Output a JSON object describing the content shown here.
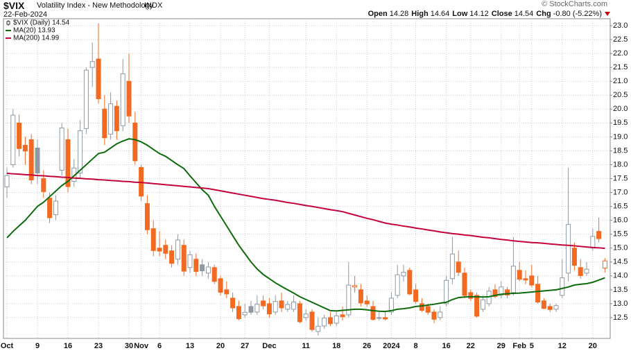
{
  "header": {
    "symbol": "$VIX",
    "name": "Volatility Index - New Methodology",
    "exchange": "INDX",
    "date": "22-Feb-2024",
    "quote": [
      {
        "label": "Open",
        "value": "14.28"
      },
      {
        "label": "High",
        "value": "14.64"
      },
      {
        "label": "Low",
        "value": "14.12"
      },
      {
        "label": "Close",
        "value": "14.54"
      },
      {
        "label": "Chg",
        "value": "-0.80 (-5.22%)"
      }
    ],
    "watermark": "© StockCharts.com"
  },
  "chart_data": {
    "type": "candlestick",
    "grid": true,
    "legend": "top-left",
    "categories": [
      "Oct",
      null,
      null,
      null,
      null,
      "9",
      null,
      null,
      null,
      null,
      "16",
      null,
      null,
      null,
      null,
      "23",
      null,
      null,
      null,
      null,
      "30",
      null,
      "Nov",
      null,
      null,
      "6",
      null,
      null,
      null,
      null,
      "13",
      null,
      null,
      null,
      null,
      "20",
      null,
      null,
      null,
      "27",
      null,
      null,
      null,
      "Dec",
      null,
      null,
      null,
      null,
      null,
      "11",
      null,
      null,
      null,
      null,
      "18",
      null,
      null,
      null,
      null,
      "26",
      null,
      null,
      null,
      "2024",
      null,
      null,
      null,
      "8",
      null,
      null,
      null,
      null,
      "16",
      null,
      null,
      null,
      "22",
      null,
      null,
      null,
      null,
      "29",
      null,
      null,
      "Feb",
      null,
      "5",
      null,
      null,
      null,
      null,
      "12",
      null,
      null,
      null,
      null,
      "20",
      null,
      null
    ],
    "ylim": [
      11.75,
      23.25
    ],
    "yticks": [
      12.5,
      {
        "value": 13,
        "label": "13.0"
      },
      13.5,
      {
        "value": 14,
        "label": "14.0"
      },
      14.5,
      {
        "value": 15,
        "label": "15.0"
      },
      15.5,
      {
        "value": 16,
        "label": "16.0"
      },
      16.5,
      {
        "value": 17,
        "label": "17.0"
      },
      17.5,
      {
        "value": 18,
        "label": "18.0"
      },
      18.5,
      {
        "value": 19,
        "label": "19.0"
      },
      19.5,
      {
        "value": 20,
        "label": "20.0"
      },
      20.5,
      {
        "value": 21,
        "label": "21.0"
      },
      21.5,
      {
        "value": 22,
        "label": "22.0"
      },
      22.5,
      {
        "value": 23,
        "label": "23.0"
      }
    ],
    "series": [
      {
        "name": "$VIX (Daily) 14.54",
        "up_color": "#8e99a3",
        "down_color": "#f26a21",
        "open": [
          17.2,
          18.0,
          19.5,
          18.7,
          18.9,
          18.6,
          17.5,
          16.8,
          16.2,
          17.8,
          18.9,
          17.4,
          17.7,
          19.3,
          21.5,
          21.8,
          20.0,
          19.1,
          20.1,
          19.4,
          21.0,
          19.5,
          17.9,
          16.6,
          15.7,
          15.0,
          15.1,
          14.9,
          14.6,
          15.1,
          14.3,
          14.6,
          14.4,
          14.1,
          14.3,
          13.9,
          13.5,
          13.2,
          12.9,
          12.6,
          12.9,
          12.7,
          13.1,
          13.0,
          12.7,
          13.1,
          12.8,
          12.8,
          13.0,
          12.5,
          12.7,
          12.0,
          12.2,
          12.5,
          12.3,
          12.6,
          12.6,
          13.6,
          13.5,
          13.1,
          12.9,
          12.5,
          12.5,
          12.7,
          13.3,
          14.0,
          14.2,
          13.5,
          13.0,
          12.9,
          12.7,
          12.5,
          13.0,
          13.9,
          14.5,
          14.1,
          13.4,
          13.3,
          12.8,
          13.0,
          13.5,
          13.3,
          13.5,
          13.4,
          14.2,
          13.9,
          14.0,
          13.7,
          13.1,
          12.9,
          12.8,
          13.3,
          14.1,
          15.0,
          14.3,
          14.1,
          15.0,
          15.6,
          14.28
        ],
        "high": [
          17.9,
          20.0,
          19.8,
          19.0,
          19.1,
          18.9,
          17.8,
          17.0,
          16.9,
          19.5,
          19.3,
          18.2,
          19.6,
          21.5,
          22.4,
          23.08,
          20.5,
          20.6,
          20.3,
          21.8,
          22.0,
          19.9,
          18.0,
          16.9,
          16.0,
          15.6,
          15.3,
          15.1,
          15.5,
          15.3,
          14.9,
          14.8,
          14.6,
          14.5,
          14.4,
          14.0,
          13.8,
          13.4,
          13.1,
          13.0,
          13.1,
          13.3,
          13.3,
          13.2,
          13.3,
          13.4,
          13.1,
          13.3,
          13.1,
          12.8,
          12.8,
          12.5,
          12.6,
          12.7,
          12.7,
          12.9,
          14.5,
          14.0,
          13.7,
          13.3,
          13.1,
          12.7,
          12.7,
          13.4,
          14.4,
          14.4,
          14.3,
          13.7,
          13.2,
          13.0,
          12.8,
          12.9,
          14.0,
          15.4,
          14.9,
          14.3,
          13.5,
          13.4,
          13.3,
          13.6,
          13.7,
          13.8,
          13.6,
          15.4,
          14.5,
          14.2,
          14.4,
          14.0,
          13.2,
          13.0,
          13.0,
          14.6,
          17.9,
          15.2,
          14.6,
          14.5,
          15.7,
          16.1,
          14.64
        ],
        "low": [
          16.8,
          17.9,
          18.3,
          18.0,
          17.3,
          17.3,
          16.8,
          15.9,
          16.0,
          17.6,
          17.0,
          17.2,
          17.5,
          19.1,
          20.8,
          20.2,
          18.7,
          18.9,
          18.9,
          19.2,
          19.5,
          18.0,
          16.7,
          15.5,
          14.7,
          14.7,
          14.6,
          14.3,
          14.4,
          14.0,
          14.1,
          14.0,
          14.0,
          13.9,
          13.7,
          13.3,
          13.2,
          12.7,
          12.4,
          12.5,
          12.6,
          12.6,
          12.8,
          12.5,
          12.6,
          12.7,
          12.7,
          12.7,
          12.3,
          12.4,
          12.0,
          11.85,
          12.1,
          12.2,
          12.2,
          12.4,
          12.5,
          13.4,
          12.9,
          12.9,
          12.4,
          12.4,
          12.4,
          12.6,
          13.2,
          13.8,
          13.3,
          13.0,
          12.7,
          12.6,
          12.3,
          12.4,
          12.9,
          13.7,
          14.0,
          13.2,
          13.1,
          12.5,
          12.7,
          12.9,
          13.2,
          13.2,
          13.2,
          13.3,
          13.8,
          13.7,
          13.6,
          13.0,
          12.8,
          12.7,
          12.7,
          13.2,
          13.8,
          14.2,
          13.9,
          14.0,
          14.9,
          15.2,
          14.12
        ],
        "close": [
          17.61,
          19.78,
          18.58,
          18.49,
          17.45,
          17.7,
          17.03,
          16.09,
          16.69,
          19.32,
          17.21,
          17.88,
          19.22,
          21.4,
          21.71,
          20.37,
          18.97,
          20.19,
          19.22,
          21.27,
          19.75,
          18.14,
          16.87,
          15.66,
          14.91,
          14.89,
          14.81,
          14.45,
          15.29,
          14.17,
          14.76,
          14.16,
          14.18,
          14.32,
          13.8,
          13.41,
          13.35,
          12.85,
          12.46,
          12.69,
          12.69,
          12.98,
          12.92,
          12.63,
          13.08,
          12.85,
          12.97,
          13.06,
          12.35,
          12.63,
          12.07,
          12.19,
          12.48,
          12.28,
          12.56,
          12.53,
          13.67,
          13.65,
          13.03,
          12.99,
          12.43,
          12.47,
          12.45,
          13.2,
          14.04,
          14.13,
          13.35,
          13.08,
          12.76,
          12.69,
          12.44,
          12.7,
          13.84,
          14.79,
          14.13,
          13.3,
          13.19,
          12.55,
          13.14,
          13.45,
          13.26,
          13.6,
          13.31,
          14.35,
          13.88,
          13.85,
          13.67,
          13.06,
          12.83,
          12.79,
          12.93,
          13.93,
          15.85,
          14.38,
          14.01,
          14.24,
          15.42,
          15.34,
          14.54
        ]
      },
      {
        "name": "MA(20) 13.93",
        "color": "#0b6b0b",
        "values": [
          15.37,
          15.6,
          15.8,
          16.0,
          16.25,
          16.5,
          16.65,
          16.85,
          17.05,
          17.25,
          17.4,
          17.6,
          17.8,
          18.0,
          18.2,
          18.4,
          18.45,
          18.6,
          18.75,
          18.85,
          18.93,
          18.9,
          18.82,
          18.7,
          18.55,
          18.4,
          18.3,
          18.15,
          18.0,
          17.86,
          17.6,
          17.35,
          17.1,
          16.9,
          16.5,
          16.15,
          15.8,
          15.45,
          15.1,
          14.8,
          14.5,
          14.25,
          14.05,
          13.9,
          13.75,
          13.62,
          13.5,
          13.38,
          13.25,
          13.15,
          13.05,
          12.95,
          12.85,
          12.75,
          12.74,
          12.76,
          12.78,
          12.8,
          12.8,
          12.78,
          12.75,
          12.73,
          12.72,
          12.75,
          12.8,
          12.82,
          12.85,
          12.9,
          12.92,
          12.95,
          12.98,
          13.02,
          13.05,
          13.15,
          13.22,
          13.24,
          13.25,
          13.25,
          13.24,
          13.25,
          13.3,
          13.34,
          13.36,
          13.37,
          13.38,
          13.4,
          13.42,
          13.44,
          13.46,
          13.48,
          13.5,
          13.55,
          13.6,
          13.67,
          13.7,
          13.72,
          13.77,
          13.85,
          13.93
        ]
      },
      {
        "name": "MA(200) 14.99",
        "color": "#c4003a",
        "values": [
          17.69,
          17.67,
          17.66,
          17.64,
          17.63,
          17.61,
          17.6,
          17.58,
          17.57,
          17.55,
          17.54,
          17.52,
          17.51,
          17.49,
          17.48,
          17.46,
          17.45,
          17.43,
          17.42,
          17.4,
          17.39,
          17.37,
          17.36,
          17.34,
          17.32,
          17.3,
          17.28,
          17.26,
          17.24,
          17.22,
          17.2,
          17.18,
          17.16,
          17.14,
          17.1,
          17.06,
          17.02,
          16.98,
          16.94,
          16.9,
          16.86,
          16.82,
          16.78,
          16.75,
          16.72,
          16.68,
          16.64,
          16.61,
          16.57,
          16.53,
          16.5,
          16.46,
          16.42,
          16.38,
          16.35,
          16.31,
          16.25,
          16.19,
          16.13,
          16.07,
          16.02,
          15.96,
          15.9,
          15.86,
          15.83,
          15.79,
          15.76,
          15.72,
          15.69,
          15.65,
          15.62,
          15.58,
          15.55,
          15.52,
          15.5,
          15.47,
          15.45,
          15.42,
          15.39,
          15.37,
          15.34,
          15.31,
          15.29,
          15.26,
          15.24,
          15.22,
          15.2,
          15.19,
          15.17,
          15.15,
          15.13,
          15.11,
          15.1,
          15.08,
          15.06,
          15.04,
          15.02,
          15.01,
          14.99
        ]
      }
    ]
  }
}
